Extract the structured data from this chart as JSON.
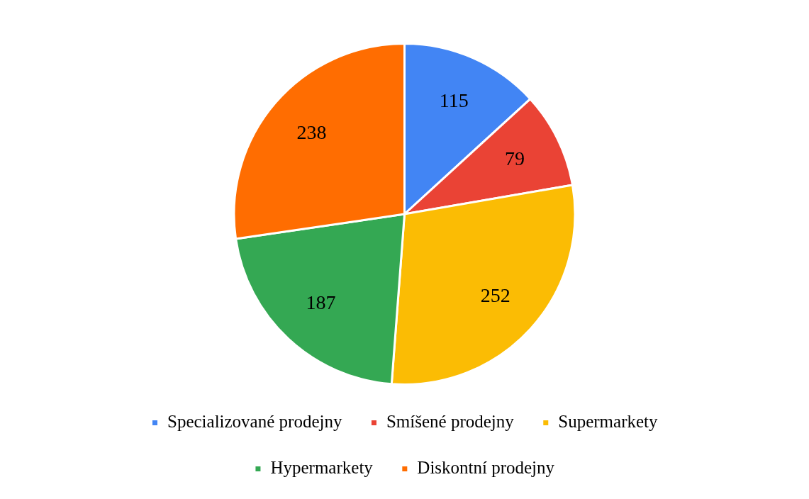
{
  "chart_data": {
    "type": "pie",
    "categories": [
      "Specializované prodejny",
      "Smíšené prodejny",
      "Supermarkety",
      "Hypermarkety",
      "Diskontní prodejny"
    ],
    "values": [
      115,
      79,
      252,
      187,
      238
    ],
    "colors": [
      "#4285f4",
      "#ea4335",
      "#fbbc04",
      "#34a853",
      "#ff6d01"
    ],
    "data_labels": true,
    "legend": "bottom"
  }
}
